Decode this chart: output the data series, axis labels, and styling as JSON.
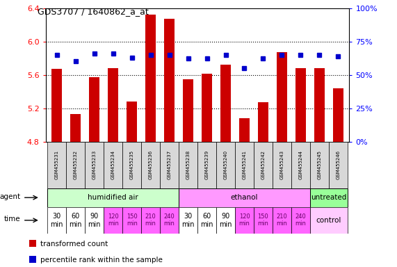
{
  "title": "GDS3707 / 1640862_a_at",
  "samples": [
    "GSM455231",
    "GSM455232",
    "GSM455233",
    "GSM455234",
    "GSM455235",
    "GSM455236",
    "GSM455237",
    "GSM455238",
    "GSM455239",
    "GSM455240",
    "GSM455241",
    "GSM455242",
    "GSM455243",
    "GSM455244",
    "GSM455245",
    "GSM455246"
  ],
  "bar_values": [
    5.67,
    5.13,
    5.57,
    5.68,
    5.28,
    6.32,
    6.27,
    5.55,
    5.61,
    5.72,
    5.08,
    5.27,
    5.87,
    5.68,
    5.68,
    5.44
  ],
  "percentile_values": [
    65,
    60,
    66,
    66,
    63,
    65,
    65,
    62,
    62,
    65,
    55,
    62,
    65,
    65,
    65,
    64
  ],
  "bar_color": "#cc0000",
  "percentile_color": "#0000cc",
  "ylim": [
    4.8,
    6.4
  ],
  "y2lim": [
    0,
    100
  ],
  "yticks": [
    4.8,
    5.2,
    5.6,
    6.0,
    6.4
  ],
  "y2ticks": [
    0,
    25,
    50,
    75,
    100
  ],
  "y2ticklabels": [
    "0%",
    "25%",
    "50%",
    "75%",
    "100%"
  ],
  "agent_groups": [
    {
      "label": "humidified air",
      "start": 0,
      "end": 7,
      "color": "#ccffcc"
    },
    {
      "label": "ethanol",
      "start": 7,
      "end": 14,
      "color": "#ff99ff"
    },
    {
      "label": "untreated",
      "start": 14,
      "end": 16,
      "color": "#99ff99"
    }
  ],
  "time_labels": [
    "30\nmin",
    "60\nmin",
    "90\nmin",
    "120\nmin",
    "150\nmin",
    "210\nmin",
    "240\nmin",
    "30\nmin",
    "60\nmin",
    "90\nmin",
    "120\nmin",
    "150\nmin",
    "210\nmin",
    "240\nmin"
  ],
  "time_white_cols": [
    0,
    1,
    2,
    7,
    8,
    9
  ],
  "time_pink_cols": [
    3,
    4,
    5,
    6,
    10,
    11,
    12,
    13
  ],
  "control_label": "control",
  "control_bg": "#ffccff",
  "legend_items": [
    {
      "color": "#cc0000",
      "label": "transformed count"
    },
    {
      "color": "#0000cc",
      "label": "percentile rank within the sample"
    }
  ],
  "bg_color": "#ffffff",
  "sample_cell_color": "#d8d8d8",
  "grid_lines": [
    5.2,
    5.6,
    6.0
  ]
}
